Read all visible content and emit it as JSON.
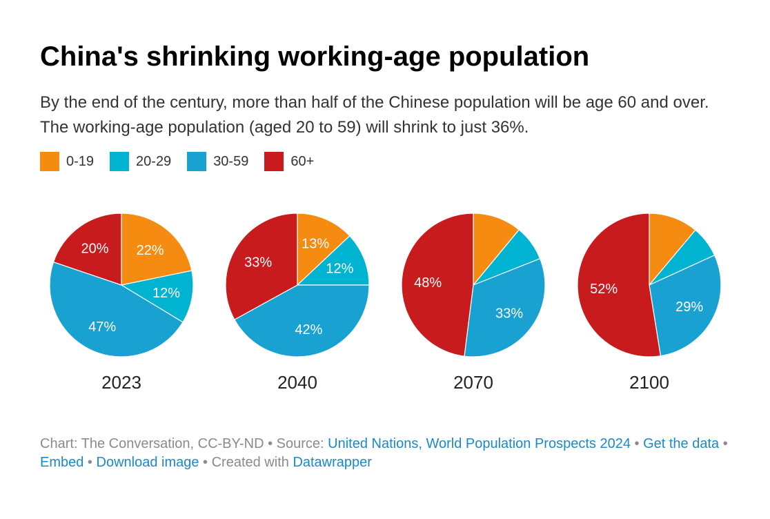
{
  "title": "China's shrinking working-age population",
  "subtitle": "By the end of the century, more than half of the Chinese population will be age 60 and over. The working-age population (aged 20 to 59) will shrink to just 36%.",
  "colors": {
    "0-19": "#f68b11",
    "20-29": "#00b4d1",
    "30-59": "#18a1d1",
    "60+": "#c81b1e"
  },
  "legend": [
    {
      "label": "0-19",
      "color": "#f68b11"
    },
    {
      "label": "20-29",
      "color": "#00b4d1"
    },
    {
      "label": "30-59",
      "color": "#18a1d1"
    },
    {
      "label": "60+",
      "color": "#c81b1e"
    }
  ],
  "chart_data": [
    {
      "type": "pie",
      "title": "2023",
      "slices": [
        {
          "label": "0-19",
          "value": 22,
          "data_label": "22%"
        },
        {
          "label": "20-29",
          "value": 12,
          "data_label": "12%"
        },
        {
          "label": "30-59",
          "value": 47,
          "data_label": "47%"
        },
        {
          "label": "60+",
          "value": 20,
          "data_label": "20%"
        }
      ]
    },
    {
      "type": "pie",
      "title": "2040",
      "slices": [
        {
          "label": "0-19",
          "value": 13,
          "data_label": "13%"
        },
        {
          "label": "20-29",
          "value": 12,
          "data_label": "12%"
        },
        {
          "label": "30-59",
          "value": 42,
          "data_label": "42%"
        },
        {
          "label": "60+",
          "value": 33,
          "data_label": "33%"
        }
      ]
    },
    {
      "type": "pie",
      "title": "2070",
      "slices": [
        {
          "label": "0-19",
          "value": 11,
          "data_label": ""
        },
        {
          "label": "20-29",
          "value": 8,
          "data_label": ""
        },
        {
          "label": "30-59",
          "value": 33,
          "data_label": "33%"
        },
        {
          "label": "60+",
          "value": 48,
          "data_label": "48%"
        }
      ]
    },
    {
      "type": "pie",
      "title": "2100",
      "slices": [
        {
          "label": "0-19",
          "value": 11,
          "data_label": ""
        },
        {
          "label": "20-29",
          "value": 7,
          "data_label": ""
        },
        {
          "label": "30-59",
          "value": 29,
          "data_label": "29%"
        },
        {
          "label": "60+",
          "value": 52,
          "data_label": "52%"
        }
      ]
    }
  ],
  "footer": {
    "prefix": "Chart: The Conversation, CC-BY-ND • Source: ",
    "source_link": "United Nations, World Population Prospects 2024",
    "sep1": " • ",
    "get_data": "Get the data",
    "sep2": " • ",
    "embed": "Embed",
    "sep3": "  • ",
    "download": "Download image",
    "sep4": " • Created with ",
    "datawrapper": "Datawrapper"
  }
}
